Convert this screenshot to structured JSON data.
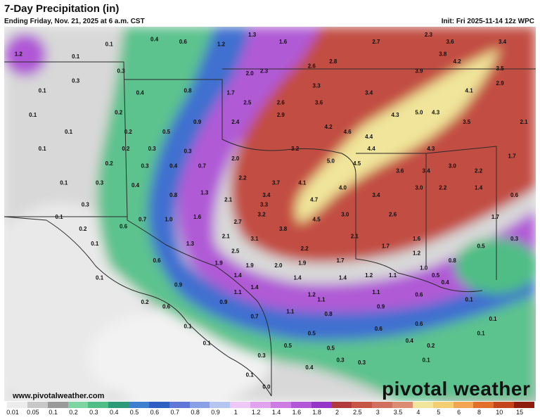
{
  "header": {
    "title": "7-Day Precipitation (in)",
    "subtitle": "Ending Friday, Nov. 21, 2025 at 6 a.m. CST",
    "init": "Init: Fri 2025-11-14 12z WPC"
  },
  "footer": {
    "website": "www.pivotalweather.com",
    "brand": "pivotal weather"
  },
  "legend": {
    "labels": [
      "0.01",
      "0.05",
      "0.1",
      "0.2",
      "0.3",
      "0.4",
      "0.5",
      "0.6",
      "0.7",
      "0.8",
      "0.9",
      "1",
      "1.2",
      "1.4",
      "1.6",
      "1.8",
      "2",
      "2.5",
      "3",
      "3.5",
      "4",
      "5",
      "6",
      "8",
      "10",
      "15"
    ],
    "colors": [
      "#ececec",
      "#c8c8c8",
      "#9a9a9a",
      "#7dd6a2",
      "#4fbd85",
      "#2b9a76",
      "#3f7fcf",
      "#2f5fc2",
      "#5f78d8",
      "#8aa0e6",
      "#b5c4f1",
      "#f0c8f7",
      "#e2a3ee",
      "#cc7ce3",
      "#b257d8",
      "#9535c9",
      "#b23a3a",
      "#c75547",
      "#d1705e",
      "#dd8c74",
      "#f0e59a",
      "#f4cf72",
      "#f3a552",
      "#e2702b",
      "#c4441c",
      "#8e1d0d"
    ]
  },
  "map_labels": [
    {
      "v": "1.2",
      "lon": -108.7,
      "lat": 37.4
    },
    {
      "v": "0.1",
      "lon": -106.3,
      "lat": 37.3
    },
    {
      "v": "0.1",
      "lon": -104.9,
      "lat": 37.8
    },
    {
      "v": "0.4",
      "lon": -103.0,
      "lat": 38.0
    },
    {
      "v": "0.6",
      "lon": -101.8,
      "lat": 37.9
    },
    {
      "v": "1.2",
      "lon": -100.2,
      "lat": 37.8
    },
    {
      "v": "1.3",
      "lon": -98.9,
      "lat": 38.2
    },
    {
      "v": "1.6",
      "lon": -97.6,
      "lat": 37.9
    },
    {
      "v": "2.7",
      "lon": -93.7,
      "lat": 37.9
    },
    {
      "v": "2.3",
      "lon": -91.5,
      "lat": 38.2
    },
    {
      "v": "3.6",
      "lon": -90.6,
      "lat": 37.9
    },
    {
      "v": "3.4",
      "lon": -88.4,
      "lat": 37.9
    },
    {
      "v": "0.3",
      "lon": -104.4,
      "lat": 36.7
    },
    {
      "v": "2.6",
      "lon": -96.4,
      "lat": 36.9
    },
    {
      "v": "2.8",
      "lon": -95.5,
      "lat": 37.1
    },
    {
      "v": "3.8",
      "lon": -90.9,
      "lat": 37.4
    },
    {
      "v": "4.2",
      "lon": -90.3,
      "lat": 37.1
    },
    {
      "v": "3.5",
      "lon": -88.5,
      "lat": 36.8
    },
    {
      "v": "0.1",
      "lon": -107.7,
      "lat": 35.9
    },
    {
      "v": "0.3",
      "lon": -106.3,
      "lat": 36.3
    },
    {
      "v": "0.4",
      "lon": -103.6,
      "lat": 35.8
    },
    {
      "v": "0.8",
      "lon": -101.6,
      "lat": 35.9
    },
    {
      "v": "1.7",
      "lon": -99.8,
      "lat": 35.8
    },
    {
      "v": "2.0",
      "lon": -99.0,
      "lat": 36.6
    },
    {
      "v": "2.3",
      "lon": -98.4,
      "lat": 36.7
    },
    {
      "v": "3.3",
      "lon": -96.2,
      "lat": 36.1
    },
    {
      "v": "3.4",
      "lon": -94.0,
      "lat": 35.8
    },
    {
      "v": "3.9",
      "lon": -91.9,
      "lat": 36.7
    },
    {
      "v": "4.1",
      "lon": -89.8,
      "lat": 35.9
    },
    {
      "v": "2.9",
      "lon": -88.5,
      "lat": 36.2
    },
    {
      "v": "0.1",
      "lon": -108.1,
      "lat": 34.9
    },
    {
      "v": "0.2",
      "lon": -104.5,
      "lat": 35.0
    },
    {
      "v": "2.5",
      "lon": -99.1,
      "lat": 35.4
    },
    {
      "v": "2.6",
      "lon": -97.7,
      "lat": 35.4
    },
    {
      "v": "3.6",
      "lon": -96.1,
      "lat": 35.4
    },
    {
      "v": "4.3",
      "lon": -92.9,
      "lat": 34.9
    },
    {
      "v": "5.0",
      "lon": -91.9,
      "lat": 35.0
    },
    {
      "v": "4.3",
      "lon": -91.2,
      "lat": 35.0
    },
    {
      "v": "2.1",
      "lon": -87.5,
      "lat": 34.6
    },
    {
      "v": "0.1",
      "lon": -106.6,
      "lat": 34.2
    },
    {
      "v": "0.2",
      "lon": -104.1,
      "lat": 34.2
    },
    {
      "v": "0.5",
      "lon": -102.5,
      "lat": 34.2
    },
    {
      "v": "0.9",
      "lon": -101.2,
      "lat": 34.6
    },
    {
      "v": "2.4",
      "lon": -99.6,
      "lat": 34.6
    },
    {
      "v": "2.9",
      "lon": -97.7,
      "lat": 34.9
    },
    {
      "v": "4.2",
      "lon": -95.7,
      "lat": 34.4
    },
    {
      "v": "4.6",
      "lon": -94.9,
      "lat": 34.2
    },
    {
      "v": "4.4",
      "lon": -94.0,
      "lat": 34.0
    },
    {
      "v": "3.5",
      "lon": -89.9,
      "lat": 34.6
    },
    {
      "v": "0.1",
      "lon": -107.7,
      "lat": 33.5
    },
    {
      "v": "0.2",
      "lon": -104.2,
      "lat": 33.5
    },
    {
      "v": "0.3",
      "lon": -103.1,
      "lat": 33.5
    },
    {
      "v": "0.3",
      "lon": -101.6,
      "lat": 33.4
    },
    {
      "v": "3.2",
      "lon": -97.1,
      "lat": 33.5
    },
    {
      "v": "4.4",
      "lon": -93.9,
      "lat": 33.5
    },
    {
      "v": "4.3",
      "lon": -91.4,
      "lat": 33.5
    },
    {
      "v": "1.7",
      "lon": -88.0,
      "lat": 33.2
    },
    {
      "v": "0.2",
      "lon": -104.9,
      "lat": 32.9
    },
    {
      "v": "0.3",
      "lon": -103.4,
      "lat": 32.8
    },
    {
      "v": "0.4",
      "lon": -102.2,
      "lat": 32.8
    },
    {
      "v": "0.7",
      "lon": -101.0,
      "lat": 32.8
    },
    {
      "v": "2.0",
      "lon": -99.6,
      "lat": 33.1
    },
    {
      "v": "5.0",
      "lon": -95.6,
      "lat": 33.0
    },
    {
      "v": "4.5",
      "lon": -94.5,
      "lat": 32.9
    },
    {
      "v": "3.6",
      "lon": -92.7,
      "lat": 32.6
    },
    {
      "v": "3.4",
      "lon": -91.6,
      "lat": 32.6
    },
    {
      "v": "3.0",
      "lon": -90.5,
      "lat": 32.8
    },
    {
      "v": "2.2",
      "lon": -89.4,
      "lat": 32.6
    },
    {
      "v": "0.1",
      "lon": -106.8,
      "lat": 32.1
    },
    {
      "v": "0.3",
      "lon": -105.3,
      "lat": 32.1
    },
    {
      "v": "0.4",
      "lon": -103.8,
      "lat": 32.0
    },
    {
      "v": "2.2",
      "lon": -99.3,
      "lat": 32.3
    },
    {
      "v": "3.7",
      "lon": -97.9,
      "lat": 32.1
    },
    {
      "v": "4.1",
      "lon": -96.8,
      "lat": 32.1
    },
    {
      "v": "4.0",
      "lon": -95.1,
      "lat": 31.9
    },
    {
      "v": "3.0",
      "lon": -91.9,
      "lat": 31.9
    },
    {
      "v": "2.2",
      "lon": -90.9,
      "lat": 31.9
    },
    {
      "v": "1.4",
      "lon": -89.4,
      "lat": 31.9
    },
    {
      "v": "0.8",
      "lon": -102.2,
      "lat": 31.6
    },
    {
      "v": "1.3",
      "lon": -100.9,
      "lat": 31.7
    },
    {
      "v": "2.1",
      "lon": -99.9,
      "lat": 31.4
    },
    {
      "v": "3.4",
      "lon": -98.3,
      "lat": 31.6
    },
    {
      "v": "4.7",
      "lon": -96.3,
      "lat": 31.4
    },
    {
      "v": "3.4",
      "lon": -93.7,
      "lat": 31.6
    },
    {
      "v": "0.6",
      "lon": -87.9,
      "lat": 31.6
    },
    {
      "v": "0.3",
      "lon": -105.9,
      "lat": 31.2
    },
    {
      "v": "3.3",
      "lon": -98.4,
      "lat": 31.2
    },
    {
      "v": "0.1",
      "lon": -107.0,
      "lat": 30.7
    },
    {
      "v": "0.7",
      "lon": -103.5,
      "lat": 30.6
    },
    {
      "v": "1.0",
      "lon": -102.4,
      "lat": 30.6
    },
    {
      "v": "1.6",
      "lon": -101.2,
      "lat": 30.7
    },
    {
      "v": "2.7",
      "lon": -99.5,
      "lat": 30.5
    },
    {
      "v": "3.2",
      "lon": -98.5,
      "lat": 30.8
    },
    {
      "v": "4.5",
      "lon": -96.2,
      "lat": 30.6
    },
    {
      "v": "3.0",
      "lon": -95.0,
      "lat": 30.8
    },
    {
      "v": "2.6",
      "lon": -93.0,
      "lat": 30.8
    },
    {
      "v": "1.7",
      "lon": -88.7,
      "lat": 30.7
    },
    {
      "v": "0.2",
      "lon": -106.0,
      "lat": 30.2
    },
    {
      "v": "0.6",
      "lon": -104.3,
      "lat": 30.3
    },
    {
      "v": "3.8",
      "lon": -97.6,
      "lat": 30.2
    },
    {
      "v": "2.1",
      "lon": -100.0,
      "lat": 29.9
    },
    {
      "v": "3.1",
      "lon": -98.8,
      "lat": 29.8
    },
    {
      "v": "2.1",
      "lon": -94.6,
      "lat": 29.9
    },
    {
      "v": "1.6",
      "lon": -92.0,
      "lat": 29.8
    },
    {
      "v": "0.1",
      "lon": -105.5,
      "lat": 29.6
    },
    {
      "v": "1.3",
      "lon": -101.5,
      "lat": 29.6
    },
    {
      "v": "2.5",
      "lon": -99.6,
      "lat": 29.3
    },
    {
      "v": "2.2",
      "lon": -96.7,
      "lat": 29.4
    },
    {
      "v": "1.7",
      "lon": -93.3,
      "lat": 29.5
    },
    {
      "v": "0.5",
      "lon": -89.3,
      "lat": 29.5
    },
    {
      "v": "0.3",
      "lon": -87.9,
      "lat": 29.8
    },
    {
      "v": "1.2",
      "lon": -92.0,
      "lat": 29.2
    },
    {
      "v": "0.6",
      "lon": -102.9,
      "lat": 28.9
    },
    {
      "v": "1.9",
      "lon": -100.3,
      "lat": 28.8
    },
    {
      "v": "1.9",
      "lon": -99.0,
      "lat": 28.7
    },
    {
      "v": "2.0",
      "lon": -97.8,
      "lat": 28.7
    },
    {
      "v": "1.9",
      "lon": -96.8,
      "lat": 28.8
    },
    {
      "v": "1.7",
      "lon": -95.2,
      "lat": 28.9
    },
    {
      "v": "1.0",
      "lon": -91.7,
      "lat": 28.6
    },
    {
      "v": "0.8",
      "lon": -90.5,
      "lat": 28.9
    },
    {
      "v": "0.1",
      "lon": -105.3,
      "lat": 28.2
    },
    {
      "v": "1.4",
      "lon": -99.5,
      "lat": 28.3
    },
    {
      "v": "1.4",
      "lon": -97.0,
      "lat": 28.2
    },
    {
      "v": "1.4",
      "lon": -95.1,
      "lat": 28.2
    },
    {
      "v": "1.2",
      "lon": -94.0,
      "lat": 28.3
    },
    {
      "v": "1.1",
      "lon": -93.0,
      "lat": 28.3
    },
    {
      "v": "0.5",
      "lon": -91.2,
      "lat": 28.3
    },
    {
      "v": "0.4",
      "lon": -90.8,
      "lat": 28.0
    },
    {
      "v": "0.9",
      "lon": -102.0,
      "lat": 27.9
    },
    {
      "v": "1.4",
      "lon": -98.8,
      "lat": 27.8
    },
    {
      "v": "1.1",
      "lon": -99.5,
      "lat": 27.6
    },
    {
      "v": "1.2",
      "lon": -96.4,
      "lat": 27.5
    },
    {
      "v": "1.1",
      "lon": -93.7,
      "lat": 27.6
    },
    {
      "v": "0.6",
      "lon": -91.9,
      "lat": 27.5
    },
    {
      "v": "0.1",
      "lon": -89.8,
      "lat": 27.3
    },
    {
      "v": "0.2",
      "lon": -103.4,
      "lat": 27.2
    },
    {
      "v": "0.9",
      "lon": -100.1,
      "lat": 27.2
    },
    {
      "v": "1.1",
      "lon": -96.0,
      "lat": 27.3
    },
    {
      "v": "0.6",
      "lon": -102.5,
      "lat": 27.0
    },
    {
      "v": "0.9",
      "lon": -93.5,
      "lat": 27.0
    },
    {
      "v": "1.1",
      "lon": -97.3,
      "lat": 26.8
    },
    {
      "v": "0.8",
      "lon": -95.7,
      "lat": 26.7
    },
    {
      "v": "0.7",
      "lon": -98.8,
      "lat": 26.6
    },
    {
      "v": "0.1",
      "lon": -88.8,
      "lat": 26.5
    },
    {
      "v": "0.6",
      "lon": -91.9,
      "lat": 26.3
    },
    {
      "v": "0.1",
      "lon": -101.6,
      "lat": 26.2
    },
    {
      "v": "0.6",
      "lon": -93.6,
      "lat": 26.1
    },
    {
      "v": "0.5",
      "lon": -96.4,
      "lat": 25.9
    },
    {
      "v": "0.4",
      "lon": -92.3,
      "lat": 25.6
    },
    {
      "v": "0.2",
      "lon": -91.4,
      "lat": 25.4
    },
    {
      "v": "0.1",
      "lon": -89.3,
      "lat": 25.9
    },
    {
      "v": "0.1",
      "lon": -100.8,
      "lat": 25.5
    },
    {
      "v": "0.5",
      "lon": -97.4,
      "lat": 25.4
    },
    {
      "v": "0.5",
      "lon": -95.6,
      "lat": 25.3
    },
    {
      "v": "0.3",
      "lon": -98.5,
      "lat": 25.0
    },
    {
      "v": "0.3",
      "lon": -95.2,
      "lat": 24.8
    },
    {
      "v": "0.1",
      "lon": -91.6,
      "lat": 24.8
    },
    {
      "v": "0.3",
      "lon": -94.3,
      "lat": 24.7
    },
    {
      "v": "0.4",
      "lon": -96.5,
      "lat": 24.5
    },
    {
      "v": "0.1",
      "lon": -99.0,
      "lat": 24.2
    },
    {
      "v": "0.0",
      "lon": -98.3,
      "lat": 23.7
    }
  ]
}
